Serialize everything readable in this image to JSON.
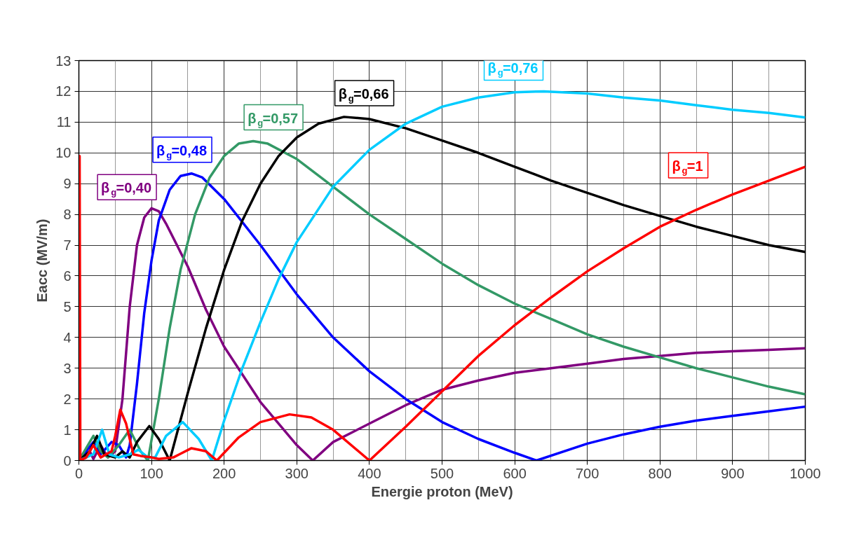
{
  "chart_data": {
    "type": "line",
    "xlabel": "Energie proton (MeV)",
    "ylabel": "Eacc (MV/m)",
    "xlim": [
      0,
      1000
    ],
    "ylim": [
      0,
      13
    ],
    "xticks": [
      0,
      100,
      200,
      300,
      400,
      500,
      600,
      700,
      800,
      900,
      1000
    ],
    "yticks": [
      0,
      1,
      2,
      3,
      4,
      5,
      6,
      7,
      8,
      9,
      10,
      11,
      12,
      13
    ],
    "grid": true,
    "marker": "none",
    "line_style": "solid",
    "series": [
      {
        "name": "β$_{g}$=0,40",
        "color": "#800080",
        "x": [
          0,
          10,
          15,
          20,
          30,
          40,
          50,
          60,
          70,
          80,
          90,
          100,
          110,
          120,
          150,
          175,
          200,
          250,
          300,
          322,
          350,
          400,
          450,
          500,
          550,
          600,
          650,
          700,
          750,
          800,
          850,
          900,
          950,
          1000
        ],
        "values": [
          0,
          0.1,
          0.3,
          0.05,
          0.5,
          0.1,
          0.3,
          2,
          5,
          7,
          7.9,
          8.2,
          8.1,
          7.7,
          6.3,
          4.9,
          3.7,
          1.9,
          0.5,
          0,
          0.6,
          1.2,
          1.8,
          2.3,
          2.6,
          2.85,
          3.0,
          3.15,
          3.3,
          3.4,
          3.5,
          3.55,
          3.6,
          3.65
        ]
      },
      {
        "name": "β$_{g}$=0,48",
        "color": "#0000ff",
        "x": [
          0,
          10,
          20,
          30,
          45,
          55,
          65,
          70,
          80,
          90,
          100,
          110,
          125,
          140,
          155,
          170,
          200,
          250,
          300,
          350,
          400,
          450,
          500,
          550,
          600,
          630,
          700,
          750,
          800,
          850,
          900,
          950,
          1000
        ],
        "values": [
          0,
          0.3,
          0.6,
          0.2,
          0.6,
          0.5,
          0.1,
          0.5,
          2.5,
          4.8,
          6.5,
          7.8,
          8.8,
          9.25,
          9.33,
          9.2,
          8.5,
          7.0,
          5.4,
          4.0,
          2.9,
          2.0,
          1.25,
          0.7,
          0.25,
          0,
          0.55,
          0.85,
          1.1,
          1.3,
          1.45,
          1.6,
          1.75
        ]
      },
      {
        "name": "β$_{g}$=0,57",
        "color": "#339966",
        "x": [
          0,
          15,
          20,
          30,
          40,
          55,
          70,
          85,
          95,
          110,
          125,
          140,
          160,
          180,
          200,
          220,
          240,
          260,
          300,
          350,
          400,
          450,
          500,
          550,
          600,
          650,
          700,
          750,
          800,
          850,
          900,
          950,
          1000
        ],
        "values": [
          0,
          0.6,
          0.8,
          0.3,
          0.1,
          0.5,
          1.0,
          0.3,
          0,
          2.0,
          4.3,
          6.2,
          8.0,
          9.2,
          9.9,
          10.3,
          10.38,
          10.3,
          9.8,
          8.9,
          8.0,
          7.2,
          6.4,
          5.7,
          5.1,
          4.6,
          4.1,
          3.7,
          3.35,
          3.0,
          2.7,
          2.4,
          2.15
        ]
      },
      {
        "name": "β$_{g}$=0,66",
        "color": "#000000",
        "x": [
          0,
          15,
          25,
          35,
          50,
          60,
          70,
          80,
          97,
          110,
          125,
          150,
          175,
          200,
          225,
          250,
          275,
          300,
          330,
          365,
          400,
          450,
          500,
          550,
          600,
          650,
          700,
          750,
          800,
          850,
          900,
          950,
          1000
        ],
        "values": [
          0,
          0.3,
          0.8,
          0.2,
          0.1,
          0.3,
          0.1,
          0.6,
          1.12,
          0.7,
          0,
          2.2,
          4.3,
          6.2,
          7.8,
          9.0,
          9.9,
          10.5,
          10.95,
          11.17,
          11.1,
          10.8,
          10.4,
          10.0,
          9.55,
          9.1,
          8.7,
          8.3,
          7.95,
          7.6,
          7.3,
          7.0,
          6.78
        ]
      },
      {
        "name": "β$_{g}$=0,76",
        "color": "#00ccff",
        "x": [
          0,
          20,
          32,
          42,
          55,
          70,
          82,
          95,
          105,
          120,
          143,
          165,
          183,
          200,
          225,
          250,
          275,
          300,
          350,
          400,
          450,
          500,
          550,
          600,
          640,
          700,
          750,
          800,
          850,
          900,
          950,
          1000
        ],
        "values": [
          0,
          0.2,
          1.0,
          0.2,
          0.1,
          0.2,
          0.35,
          0.1,
          0.1,
          0.8,
          1.25,
          0.7,
          0,
          1.3,
          3.0,
          4.5,
          5.9,
          7.1,
          8.9,
          10.1,
          10.95,
          11.5,
          11.8,
          11.97,
          12.0,
          11.93,
          11.8,
          11.7,
          11.55,
          11.4,
          11.3,
          11.15
        ]
      },
      {
        "name": "β$_{g}$=1",
        "color": "#ff0000",
        "x": [
          0,
          1,
          2,
          10,
          20,
          30,
          45,
          50,
          57,
          65,
          75,
          85,
          100,
          110,
          130,
          155,
          175,
          190,
          220,
          250,
          290,
          320,
          350,
          400,
          450,
          500,
          550,
          600,
          650,
          700,
          750,
          800,
          850,
          900,
          950,
          1000
        ],
        "values": [
          0,
          9.9,
          0,
          0.1,
          0.5,
          0.1,
          0.3,
          0.8,
          1.65,
          1.2,
          0.2,
          0.15,
          0.1,
          0.05,
          0.1,
          0.4,
          0.3,
          0,
          0.75,
          1.25,
          1.5,
          1.4,
          1.0,
          0,
          1.1,
          2.25,
          3.4,
          4.4,
          5.3,
          6.15,
          6.9,
          7.6,
          8.15,
          8.65,
          9.1,
          9.55
        ]
      }
    ]
  }
}
